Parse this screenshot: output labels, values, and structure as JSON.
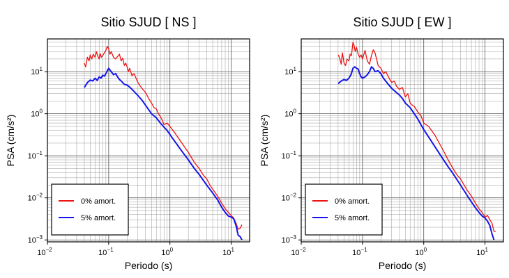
{
  "chart_data": [
    {
      "type": "line",
      "title": "Sitio SJUD [ NS ]",
      "xlabel": "Periodo (s)",
      "ylabel": "PSA (cm/s²)",
      "xscale": "log",
      "yscale": "log",
      "xlim": [
        0.01,
        20
      ],
      "ylim": [
        0.0009,
        60
      ],
      "grid": true,
      "legend_position": "bottom-left",
      "xticks": [
        {
          "value": 0.01,
          "base": "10",
          "exp": "−2"
        },
        {
          "value": 0.1,
          "base": "10",
          "exp": "−1"
        },
        {
          "value": 1,
          "base": "10",
          "exp": "0"
        },
        {
          "value": 10,
          "base": "10",
          "exp": "1"
        }
      ],
      "yticks": [
        {
          "value": 0.001,
          "base": "10",
          "exp": "−3"
        },
        {
          "value": 0.01,
          "base": "10",
          "exp": "−2"
        },
        {
          "value": 0.1,
          "base": "10",
          "exp": "−1"
        },
        {
          "value": 1,
          "base": "10",
          "exp": "0"
        },
        {
          "value": 10,
          "base": "10",
          "exp": "1"
        }
      ],
      "series": [
        {
          "name": "0% amort.",
          "color": "#ee1111",
          "x": [
            0.04,
            0.042,
            0.045,
            0.048,
            0.05,
            0.053,
            0.056,
            0.06,
            0.063,
            0.066,
            0.07,
            0.073,
            0.076,
            0.08,
            0.085,
            0.09,
            0.095,
            0.1,
            0.105,
            0.11,
            0.12,
            0.13,
            0.14,
            0.15,
            0.16,
            0.17,
            0.18,
            0.19,
            0.2,
            0.21,
            0.22,
            0.24,
            0.26,
            0.28,
            0.3,
            0.33,
            0.36,
            0.4,
            0.45,
            0.5,
            0.55,
            0.6,
            0.65,
            0.7,
            0.75,
            0.8,
            0.9,
            1.0,
            1.2,
            1.5,
            2.0,
            2.5,
            3.0,
            3.5,
            4.0,
            4.5,
            5.0,
            6.0,
            7.0,
            8.0,
            9.0,
            10.0,
            11.0,
            12.0,
            13.0,
            14.0,
            15.0
          ],
          "y": [
            16,
            13,
            22,
            18,
            25,
            20,
            26,
            22,
            30,
            24,
            20,
            27,
            22,
            24,
            28,
            32,
            40,
            35,
            26,
            30,
            22,
            20,
            23,
            26,
            18,
            21,
            14,
            16,
            13,
            10,
            12,
            8,
            9,
            7,
            5.5,
            4.5,
            3.8,
            3.2,
            2.3,
            1.8,
            1.4,
            1.3,
            1.0,
            0.85,
            0.7,
            0.55,
            0.6,
            0.5,
            0.35,
            0.22,
            0.12,
            0.07,
            0.05,
            0.035,
            0.028,
            0.02,
            0.016,
            0.011,
            0.0075,
            0.0055,
            0.0045,
            0.0038,
            0.0033,
            0.0025,
            0.0018,
            0.0019,
            0.0023
          ]
        },
        {
          "name": "5% amort.",
          "color": "#1414ee",
          "x": [
            0.04,
            0.045,
            0.05,
            0.055,
            0.06,
            0.065,
            0.07,
            0.075,
            0.08,
            0.085,
            0.09,
            0.095,
            0.1,
            0.11,
            0.12,
            0.13,
            0.14,
            0.15,
            0.16,
            0.18,
            0.2,
            0.22,
            0.25,
            0.3,
            0.35,
            0.4,
            0.45,
            0.5,
            0.6,
            0.7,
            0.8,
            0.9,
            1.0,
            1.2,
            1.5,
            2.0,
            2.5,
            3.0,
            4.0,
            5.0,
            6.0,
            7.0,
            8.0,
            9.0,
            10.0,
            11.0,
            12.0,
            13.0,
            14.0,
            15.0
          ],
          "y": [
            4.2,
            5.5,
            6.3,
            6.0,
            7.0,
            6.2,
            7.5,
            7.0,
            8.2,
            7.8,
            9.0,
            10.5,
            12.0,
            10.0,
            8.5,
            9.0,
            7.5,
            6.5,
            6.0,
            5.0,
            4.8,
            4.3,
            3.6,
            2.7,
            2.1,
            1.6,
            1.25,
            1.0,
            0.8,
            0.6,
            0.48,
            0.4,
            0.32,
            0.22,
            0.14,
            0.08,
            0.05,
            0.036,
            0.02,
            0.013,
            0.009,
            0.006,
            0.0045,
            0.0037,
            0.0035,
            0.0032,
            0.0022,
            0.0013,
            0.0012,
            0.001
          ]
        }
      ]
    },
    {
      "type": "line",
      "title": "Sitio SJUD [ EW ]",
      "xlabel": "Periodo (s)",
      "ylabel": "PSA (cm/s²)",
      "xscale": "log",
      "yscale": "log",
      "xlim": [
        0.01,
        20
      ],
      "ylim": [
        0.0009,
        60
      ],
      "grid": true,
      "legend_position": "bottom-left",
      "xticks": [
        {
          "value": 0.01,
          "base": "10",
          "exp": "−2"
        },
        {
          "value": 0.1,
          "base": "10",
          "exp": "−1"
        },
        {
          "value": 1,
          "base": "10",
          "exp": "0"
        },
        {
          "value": 10,
          "base": "10",
          "exp": "1"
        }
      ],
      "yticks": [
        {
          "value": 0.001,
          "base": "10",
          "exp": "−3"
        },
        {
          "value": 0.01,
          "base": "10",
          "exp": "−2"
        },
        {
          "value": 0.1,
          "base": "10",
          "exp": "−1"
        },
        {
          "value": 1,
          "base": "10",
          "exp": "0"
        },
        {
          "value": 10,
          "base": "10",
          "exp": "1"
        }
      ],
      "series": [
        {
          "name": "0% amort.",
          "color": "#ee1111",
          "x": [
            0.04,
            0.042,
            0.045,
            0.047,
            0.05,
            0.053,
            0.056,
            0.06,
            0.063,
            0.066,
            0.07,
            0.073,
            0.076,
            0.08,
            0.085,
            0.09,
            0.095,
            0.1,
            0.11,
            0.12,
            0.13,
            0.14,
            0.15,
            0.16,
            0.17,
            0.18,
            0.2,
            0.22,
            0.24,
            0.26,
            0.28,
            0.3,
            0.33,
            0.36,
            0.4,
            0.45,
            0.5,
            0.55,
            0.6,
            0.65,
            0.7,
            0.8,
            0.9,
            1.0,
            1.2,
            1.5,
            2.0,
            2.5,
            3.0,
            3.5,
            4.0,
            5.0,
            6.0,
            7.0,
            8.0,
            9.0,
            10.0,
            11.0,
            12.0,
            13.0,
            14.0,
            15.0
          ],
          "y": [
            25,
            22,
            15,
            28,
            16,
            14,
            20,
            18,
            26,
            24,
            50,
            42,
            30,
            38,
            26,
            22,
            25,
            20,
            32,
            18,
            15,
            24,
            33,
            28,
            20,
            14,
            12,
            9,
            10,
            8,
            6.5,
            5.5,
            6,
            4.5,
            3.8,
            4.2,
            2.5,
            3.0,
            1.8,
            1.6,
            1.5,
            1.1,
            0.9,
            0.6,
            0.5,
            0.32,
            0.15,
            0.08,
            0.05,
            0.035,
            0.028,
            0.016,
            0.011,
            0.0075,
            0.0055,
            0.0045,
            0.0035,
            0.0038,
            0.003,
            0.0025,
            0.0016,
            0.0016
          ]
        },
        {
          "name": "5% amort.",
          "color": "#1414ee",
          "x": [
            0.04,
            0.045,
            0.05,
            0.055,
            0.06,
            0.065,
            0.07,
            0.075,
            0.08,
            0.085,
            0.09,
            0.095,
            0.1,
            0.11,
            0.12,
            0.13,
            0.14,
            0.15,
            0.16,
            0.18,
            0.2,
            0.22,
            0.25,
            0.3,
            0.35,
            0.4,
            0.45,
            0.5,
            0.6,
            0.7,
            0.8,
            0.9,
            1.0,
            1.2,
            1.5,
            2.0,
            2.5,
            3.0,
            4.0,
            5.0,
            6.0,
            7.0,
            8.0,
            9.0,
            10.0,
            11.0,
            12.0,
            13.0,
            14.0
          ],
          "y": [
            5.2,
            6.0,
            6.5,
            6.2,
            7.0,
            8.5,
            12.0,
            13.0,
            12.0,
            11.5,
            9.0,
            7.5,
            7.0,
            7.5,
            8.5,
            10.0,
            13.0,
            12.0,
            10.0,
            10.5,
            9.0,
            7.0,
            5.5,
            4.0,
            3.3,
            2.8,
            2.3,
            1.8,
            1.4,
            1.0,
            0.75,
            0.55,
            0.42,
            0.28,
            0.17,
            0.09,
            0.055,
            0.038,
            0.02,
            0.012,
            0.008,
            0.0058,
            0.0045,
            0.0037,
            0.0033,
            0.0028,
            0.0022,
            0.0014,
            0.001
          ]
        }
      ]
    }
  ]
}
